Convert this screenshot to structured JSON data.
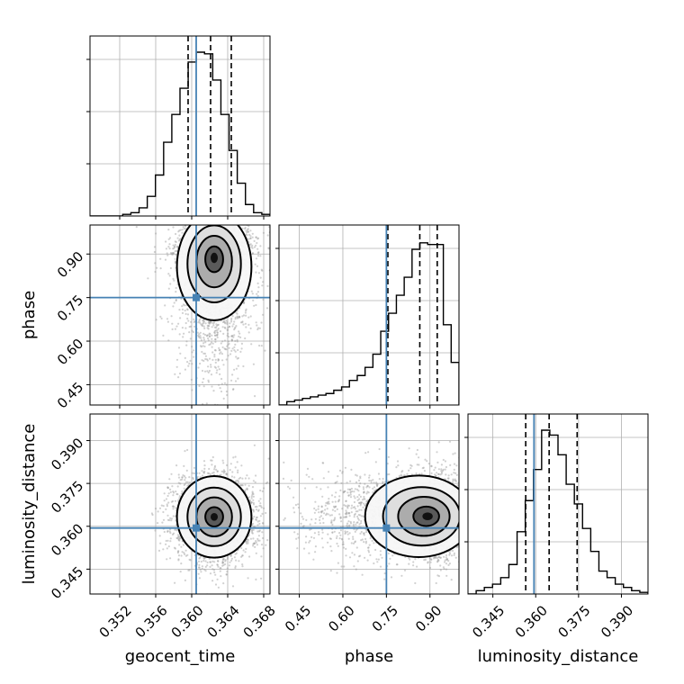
{
  "chart_data": {
    "type": "corner",
    "parameters": [
      "geocent_time",
      "phase",
      "luminosity_distance"
    ],
    "labels": {
      "geocent_time": "geocent_time",
      "phase": "phase",
      "luminosity_distance": "luminosity_distance"
    },
    "ranges": {
      "geocent_time": [
        0.3487,
        0.3687
      ],
      "phase": [
        0.38,
        1.0
      ],
      "luminosity_distance": [
        0.3363,
        0.3993
      ]
    },
    "ticks": {
      "geocent_time": [
        "0.352",
        "0.356",
        "0.360",
        "0.364",
        "0.368"
      ],
      "phase": [
        "0.45",
        "0.60",
        "0.75",
        "0.90"
      ],
      "luminosity_distance": [
        "0.345",
        "0.360",
        "0.375",
        "0.390"
      ]
    },
    "truths": {
      "geocent_time": 0.3605,
      "phase": 0.75,
      "luminosity_distance": 0.3594
    },
    "quantiles": {
      "geocent_time": [
        0.3596,
        0.3621,
        0.3644
      ],
      "phase": [
        0.755,
        0.865,
        0.925
      ],
      "luminosity_distance": [
        0.3565,
        0.3647,
        0.3745
      ]
    },
    "histograms": {
      "geocent_time": [
        0,
        0,
        0,
        0,
        0.01,
        0.02,
        0.05,
        0.12,
        0.25,
        0.45,
        0.62,
        0.78,
        0.94,
        1.0,
        0.99,
        0.83,
        0.62,
        0.4,
        0.2,
        0.07,
        0.02,
        0.01
      ],
      "phase": [
        0,
        0.02,
        0.03,
        0.04,
        0.05,
        0.06,
        0.07,
        0.09,
        0.11,
        0.15,
        0.18,
        0.23,
        0.31,
        0.45,
        0.56,
        0.67,
        0.78,
        0.95,
        0.99,
        0.98,
        0.98,
        0.49,
        0.26
      ],
      "luminosity_distance": [
        0,
        0.02,
        0.04,
        0.06,
        0.1,
        0.18,
        0.38,
        0.57,
        0.76,
        1.0,
        0.97,
        0.85,
        0.67,
        0.55,
        0.4,
        0.26,
        0.14,
        0.1,
        0.06,
        0.04,
        0.02,
        0.01
      ]
    },
    "joint_peaks": {
      "phase_vs_geocent_time": [
        0.3625,
        0.89
      ],
      "luminosity_distance_vs_geocent_time": [
        0.3625,
        0.3633
      ],
      "luminosity_distance_vs_phase": [
        0.895,
        0.3635
      ]
    },
    "grid": true,
    "truth_color": "#4682b4",
    "line_color": "#000000",
    "scatter_color": "#9a9a9a"
  }
}
